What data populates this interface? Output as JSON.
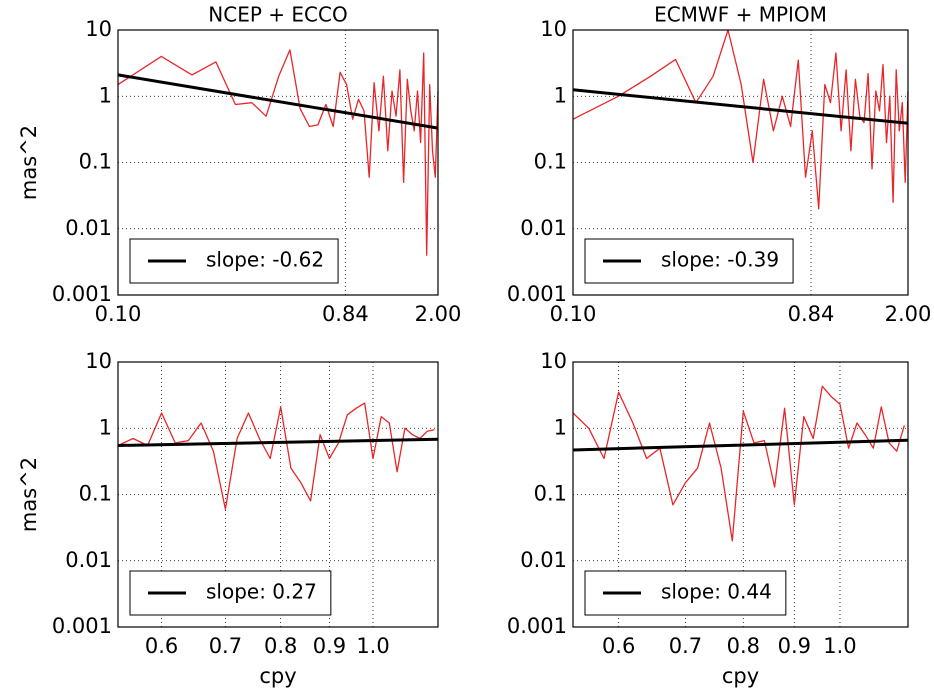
{
  "chart_data": [
    {
      "type": "line",
      "title": "NCEP + ECCO",
      "ylabel": "mas^2",
      "xscale": "log",
      "yscale": "log",
      "grid": true,
      "legend": "lower left",
      "x": [
        0.1,
        0.15,
        0.2,
        0.25,
        0.3,
        0.35,
        0.4,
        0.45,
        0.5,
        0.55,
        0.6,
        0.65,
        0.7,
        0.75,
        0.8,
        0.85,
        0.9,
        0.95,
        1.0,
        1.05,
        1.1,
        1.15,
        1.2,
        1.25,
        1.3,
        1.35,
        1.4,
        1.45,
        1.5,
        1.55,
        1.6,
        1.65,
        1.7,
        1.75,
        1.8,
        1.85,
        1.9,
        1.95,
        2.0
      ],
      "xlim": [
        0.1,
        2
      ],
      "xticks": [
        {
          "value": 0.1,
          "label": "0.10"
        },
        {
          "value": 0.84,
          "label": "0.84"
        },
        {
          "value": 2,
          "label": "2.00"
        }
      ],
      "ylim": [
        0.001,
        10
      ],
      "yticks": [
        0.001,
        0.01,
        0.1,
        1,
        10
      ],
      "series": [
        {
          "color": "#e8262a",
          "values": [
            1.5,
            4,
            2.1,
            3.3,
            0.75,
            0.8,
            0.5,
            2,
            5,
            0.65,
            0.35,
            0.37,
            0.75,
            0.35,
            2.3,
            1.5,
            0.45,
            0.9,
            0.6,
            0.06,
            1.6,
            0.3,
            2,
            0.15,
            1.2,
            0.5,
            2.5,
            0.05,
            1.8,
            0.6,
            0.3,
            1.2,
            0.2,
            4.5,
            0.004,
            1.5,
            0.15,
            0.06,
            1.2
          ]
        },
        {
          "name": "slope: -0.62",
          "color": "#000000",
          "x": [
            0.1,
            2
          ],
          "values": [
            2.1,
            0.33
          ]
        }
      ]
    },
    {
      "type": "line",
      "title": "ECMWF + MPIOM",
      "xscale": "log",
      "yscale": "log",
      "grid": true,
      "legend": "lower left",
      "x": [
        0.1,
        0.15,
        0.2,
        0.25,
        0.3,
        0.35,
        0.4,
        0.45,
        0.5,
        0.55,
        0.6,
        0.65,
        0.7,
        0.75,
        0.8,
        0.85,
        0.9,
        0.95,
        1.0,
        1.05,
        1.1,
        1.15,
        1.2,
        1.25,
        1.3,
        1.35,
        1.4,
        1.45,
        1.5,
        1.55,
        1.6,
        1.65,
        1.7,
        1.75,
        1.8,
        1.85,
        1.9,
        1.95,
        2.0
      ],
      "xlim": [
        0.1,
        2
      ],
      "xticks": [
        {
          "value": 0.1,
          "label": "0.10"
        },
        {
          "value": 0.84,
          "label": "0.84"
        },
        {
          "value": 2,
          "label": "2.00"
        }
      ],
      "ylim": [
        0.001,
        10
      ],
      "yticks": [
        0.001,
        0.01,
        0.1,
        1,
        10
      ],
      "series": [
        {
          "color": "#e8262a",
          "values": [
            0.45,
            1,
            2,
            3.6,
            0.8,
            2,
            10,
            1.5,
            0.1,
            1.8,
            0.3,
            1,
            0.35,
            3.5,
            0.06,
            0.3,
            0.02,
            1.5,
            0.8,
            4.5,
            0.3,
            2.5,
            0.15,
            1.8,
            0.5,
            0.4,
            2.2,
            0.08,
            1.2,
            0.6,
            3,
            0.2,
            1,
            0.025,
            2.5,
            0.3,
            0.8,
            0.05,
            1.2
          ]
        },
        {
          "name": "slope: -0.39",
          "color": "#000000",
          "x": [
            0.1,
            2
          ],
          "values": [
            1.25,
            0.39
          ]
        }
      ]
    },
    {
      "type": "line",
      "ylabel": "mas^2",
      "xlabel": "cpy",
      "xscale": "log",
      "yscale": "log",
      "grid": true,
      "legend": "lower left",
      "x": [
        0.54,
        0.56,
        0.58,
        0.6,
        0.62,
        0.64,
        0.66,
        0.68,
        0.7,
        0.72,
        0.74,
        0.76,
        0.78,
        0.8,
        0.82,
        0.84,
        0.86,
        0.88,
        0.9,
        0.92,
        0.94,
        0.96,
        0.98,
        1.0,
        1.02,
        1.04,
        1.06,
        1.08,
        1.1,
        1.12,
        1.14,
        1.16
      ],
      "xlim": [
        0.54,
        1.17
      ],
      "xticks": [
        0.6,
        0.7,
        0.8,
        0.9,
        {
          "value": 1,
          "label": "1.0"
        }
      ],
      "ylim": [
        0.001,
        10
      ],
      "yticks": [
        0.001,
        0.01,
        0.1,
        1,
        10
      ],
      "series": [
        {
          "color": "#e8262a",
          "values": [
            0.55,
            0.7,
            0.55,
            1.7,
            0.6,
            0.65,
            1.2,
            0.45,
            0.06,
            0.7,
            1.7,
            0.7,
            0.35,
            2.1,
            0.25,
            0.15,
            0.08,
            0.8,
            0.35,
            0.6,
            1.6,
            2,
            2.4,
            0.35,
            1.5,
            1.2,
            0.22,
            1,
            0.8,
            0.7,
            0.9,
            0.95
          ]
        },
        {
          "name": "slope: 0.27",
          "color": "#000000",
          "x": [
            0.54,
            1.17
          ],
          "values": [
            0.55,
            0.68
          ]
        }
      ]
    },
    {
      "type": "line",
      "xlabel": "cpy",
      "xscale": "log",
      "yscale": "log",
      "grid": true,
      "legend": "lower left",
      "x": [
        0.54,
        0.56,
        0.58,
        0.6,
        0.62,
        0.64,
        0.66,
        0.68,
        0.7,
        0.72,
        0.74,
        0.76,
        0.78,
        0.8,
        0.82,
        0.84,
        0.86,
        0.88,
        0.9,
        0.92,
        0.94,
        0.96,
        0.98,
        1.0,
        1.02,
        1.04,
        1.06,
        1.08,
        1.1,
        1.12,
        1.14,
        1.16
      ],
      "xlim": [
        0.54,
        1.17
      ],
      "xticks": [
        0.6,
        0.7,
        0.8,
        0.9,
        {
          "value": 1,
          "label": "1.0"
        }
      ],
      "ylim": [
        0.001,
        10
      ],
      "yticks": [
        0.001,
        0.01,
        0.1,
        1,
        10
      ],
      "series": [
        {
          "color": "#e8262a",
          "values": [
            1.7,
            1,
            0.35,
            3.5,
            1.2,
            0.35,
            0.5,
            0.07,
            0.15,
            0.25,
            1.2,
            0.25,
            0.02,
            1.8,
            0.6,
            0.65,
            0.13,
            2,
            0.07,
            1.5,
            0.7,
            4.3,
            3,
            2.3,
            0.5,
            1.2,
            0.8,
            0.5,
            2.1,
            0.6,
            0.45,
            1.1
          ]
        },
        {
          "name": "slope: 0.44",
          "color": "#000000",
          "x": [
            0.54,
            1.17
          ],
          "values": [
            0.47,
            0.66
          ]
        }
      ]
    }
  ]
}
